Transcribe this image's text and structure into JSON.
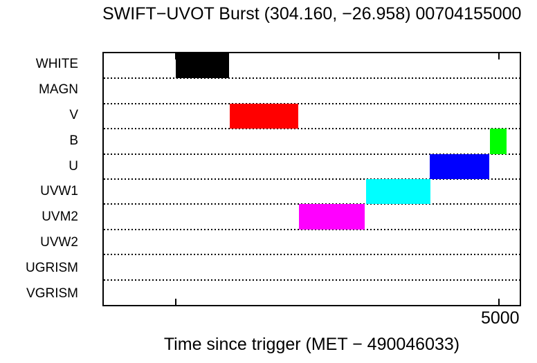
{
  "title": "SWIFT−UVOT Burst (304.160, −26.958) 00704155000",
  "xlabel": "Time since trigger (MET − 490046033)",
  "colors": {
    "background": "#ffffff",
    "axis": "#000000"
  },
  "chart_data": {
    "type": "bar",
    "subtype": "timeline-gantt",
    "title": "SWIFT−UVOT Burst (304.160, −26.958) 00704155000",
    "xlabel": "Time since trigger (MET − 490046033)",
    "rows": [
      "WHITE",
      "MAGN",
      "V",
      "B",
      "U",
      "UVW1",
      "UVM2",
      "UVW2",
      "UGRISM",
      "VGRISM"
    ],
    "xlim": [
      -1118,
      5322
    ],
    "xticks": [
      {
        "value": 0,
        "label": ""
      },
      {
        "value": 5000,
        "label": "5000"
      }
    ],
    "grid": "dotted-horizontal-row-separators",
    "legend": "none",
    "intervals": [
      {
        "row": "WHITE",
        "start": 0,
        "end": 825,
        "color": "#000000"
      },
      {
        "row": "V",
        "start": 830,
        "end": 1890,
        "color": "#ff0000"
      },
      {
        "row": "UVM2",
        "start": 1905,
        "end": 2925,
        "color": "#ff00ff"
      },
      {
        "row": "UVW1",
        "start": 2940,
        "end": 3935,
        "color": "#00ffff"
      },
      {
        "row": "U",
        "start": 3925,
        "end": 4855,
        "color": "#0000ff"
      },
      {
        "row": "B",
        "start": 4865,
        "end": 5120,
        "color": "#00ff00"
      }
    ]
  }
}
